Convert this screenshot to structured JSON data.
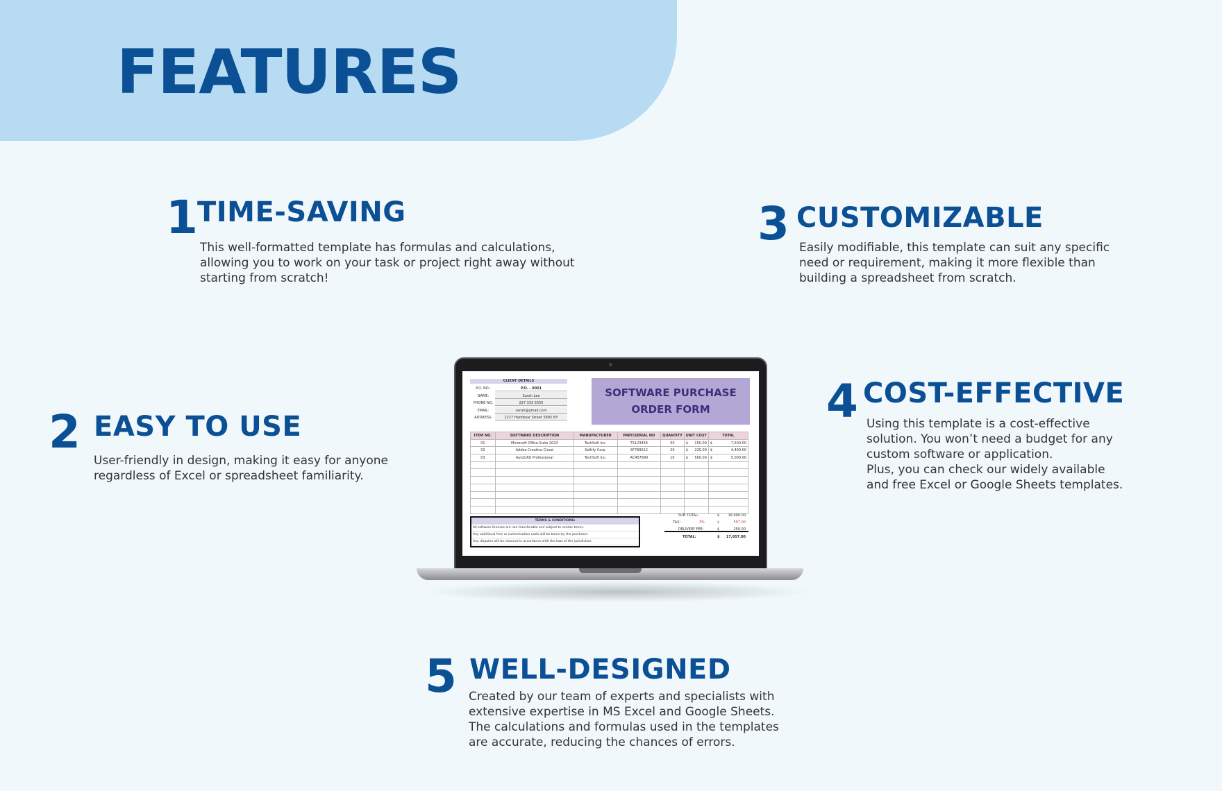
{
  "header": {
    "title": "FEATURES"
  },
  "features": [
    {
      "number": "1",
      "title": "TIME-SAVING",
      "body": "This well-formatted template has formulas and calculations,\nallowing you to work on your task or project right away without\nstarting from scratch!"
    },
    {
      "number": "2",
      "title": "EASY TO USE",
      "body": "User-friendly in design, making it easy for anyone\nregardless of Excel or spreadsheet familiarity."
    },
    {
      "number": "3",
      "title": "CUSTOMIZABLE",
      "body": "Easily modifiable, this template can suit any specific\nneed or requirement, making it more flexible than\nbuilding a spreadsheet from scratch."
    },
    {
      "number": "4",
      "title": "COST-EFFECTIVE",
      "body": "Using this template is a cost-effective\nsolution. You won’t need a budget for any\ncustom software or application.\nPlus, you can check our widely available\nand free Excel or Google Sheets templates."
    },
    {
      "number": "5",
      "title": "WELL-DESIGNED",
      "body": "Created by our team of experts and specialists with\nextensive expertise in MS Excel and Google Sheets.\nThe calculations and formulas used in the templates\nare accurate, reducing the chances of errors."
    }
  ],
  "sheet": {
    "client_header": "CLIENT DETAILS",
    "client": [
      [
        "P.O. NO.:",
        "P.O. - 0001"
      ],
      [
        "NAME:",
        "Sarah Lee"
      ],
      [
        "PHONE NO.",
        "227 333 5555"
      ],
      [
        "EMAIL:",
        "sarah@gmail.com"
      ],
      [
        "ADDRESS:",
        "2227 Hardboar Street 5895 NY"
      ]
    ],
    "title": "SOFTWARE PURCHASE ORDER FORM",
    "columns": [
      "ITEM NO.",
      "SOFTWARE DESCRIPTION",
      "MANUFACTURER",
      "PART/SERIAL NO",
      "QUANTITY",
      "UNIT COST",
      "TOTAL"
    ],
    "rows": [
      [
        "01",
        "Microsoft Office Suite 2023",
        "TechSoft Inc.",
        "TS123456",
        "50",
        "$",
        "150.00",
        "$",
        "7,500.00"
      ],
      [
        "02",
        "Adobe Creative Cloud",
        "Softify Corp.",
        "SF789012",
        "20",
        "$",
        "220.00",
        "$",
        "4,400.00"
      ],
      [
        "03",
        "AutoCAD Professional",
        "TechSoft Inc.",
        "AC457890",
        "10",
        "$",
        "500.00",
        "$",
        "5,000.00"
      ]
    ],
    "terms_header": "TERMS & CONDITIONS:",
    "terms": [
      "All software licenses are non-transferable and subject to vendor terms.",
      "Any additional fees or customization costs will be borne by the purchaser.",
      "Any disputes will be resolved in accordance with the laws of the jurisdiction."
    ],
    "totals": {
      "sub_label": "SUB TOTAL:",
      "sub": "16,900.00",
      "tax_label": "TAX:",
      "tax_rate": "3%",
      "tax": "507.00",
      "delivery_label": "DELIVERY FEE:",
      "delivery": "250.00",
      "total_label": "TOTAL:",
      "total": "17,657.00",
      "currency": "$"
    }
  },
  "colors": {
    "accent": "#0b4f94",
    "banner": "#b8dbf4",
    "background": "#f1f8fc",
    "form_title_bg": "#b3a7d6"
  }
}
